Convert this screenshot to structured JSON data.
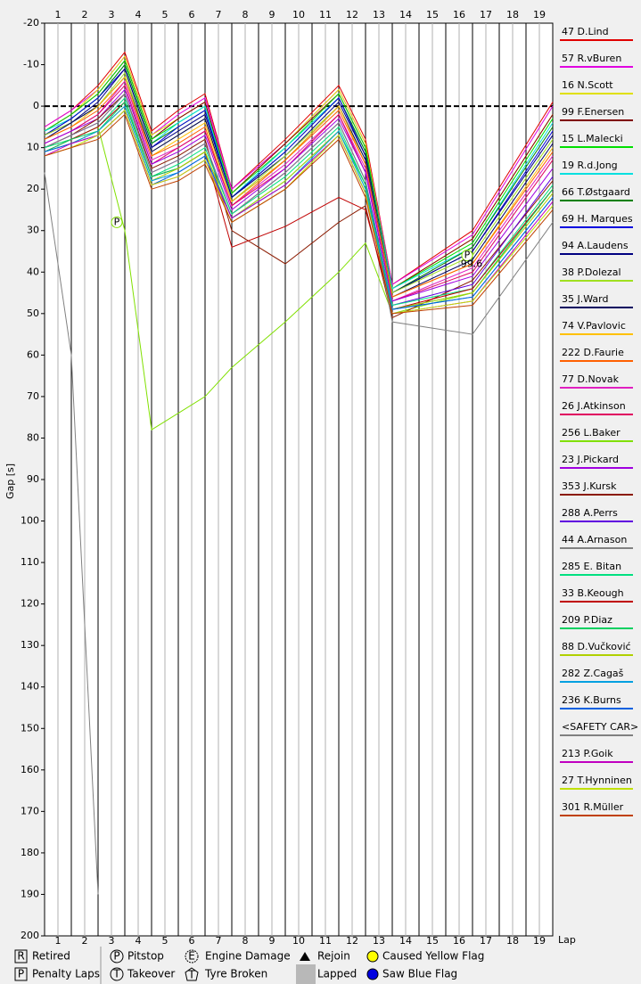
{
  "chart_data": {
    "type": "line",
    "y_label": "Gap [s]",
    "x_label": "Lap",
    "x": [
      0,
      1,
      2,
      3,
      4,
      5,
      6,
      7,
      9,
      11,
      12,
      13,
      16,
      19
    ],
    "xlim": [
      0,
      19
    ],
    "xticks": [
      {
        "value": 0.5,
        "label": "1"
      },
      {
        "value": 1.5,
        "label": "2"
      },
      {
        "value": 2.5,
        "label": "3"
      },
      {
        "value": 3.5,
        "label": "4"
      },
      {
        "value": 4.5,
        "label": "5"
      },
      {
        "value": 5.5,
        "label": "6"
      },
      {
        "value": 6.5,
        "label": "7"
      },
      {
        "value": 7.5,
        "label": "8"
      },
      {
        "value": 8.5,
        "label": "9"
      },
      {
        "value": 9.5,
        "label": "10"
      },
      {
        "value": 10.5,
        "label": "11"
      },
      {
        "value": 11.5,
        "label": "12"
      },
      {
        "value": 12.5,
        "label": "13"
      },
      {
        "value": 13.5,
        "label": "14"
      },
      {
        "value": 14.5,
        "label": "15"
      },
      {
        "value": 15.5,
        "label": "16"
      },
      {
        "value": 16.5,
        "label": "17"
      },
      {
        "value": 17.5,
        "label": "18"
      },
      {
        "value": 18.5,
        "label": "19"
      }
    ],
    "ylim": [
      -20,
      200
    ],
    "yticks": [
      -20,
      -10,
      0,
      10,
      20,
      30,
      40,
      50,
      60,
      70,
      80,
      90,
      100,
      110,
      120,
      130,
      140,
      150,
      160,
      170,
      180,
      190,
      200
    ],
    "inverted_y": true,
    "zero_line": true,
    "series": [
      {
        "name": "47 D.Lind",
        "color": "#e00000",
        "values": [
          5,
          1,
          -5,
          -13,
          6,
          1,
          -3,
          20,
          8,
          -5,
          8,
          43,
          30,
          -1
        ]
      },
      {
        "name": "57 R.vBuren",
        "color": "#e000e0",
        "values": [
          5,
          1,
          -4,
          -12,
          7,
          2,
          -2,
          20,
          9,
          -4,
          9,
          43,
          31,
          0
        ]
      },
      {
        "name": "16 N.Scott",
        "color": "#e0e000",
        "values": [
          6,
          2,
          -4,
          -12,
          7,
          3,
          -1,
          21,
          9,
          -4,
          9,
          44,
          32,
          2
        ]
      },
      {
        "name": "99 F.Enersen",
        "color": "#800000",
        "values": [
          6,
          2,
          -3,
          -11,
          8,
          3,
          -1,
          21,
          9,
          -3,
          10,
          44,
          32,
          2
        ]
      },
      {
        "name": "15 L.Malecki",
        "color": "#00e000",
        "values": [
          6,
          2,
          -3,
          -11,
          8,
          4,
          0,
          21,
          10,
          -3,
          10,
          44,
          33,
          3
        ]
      },
      {
        "name": "19 R.d.Jong",
        "color": "#00e0e0",
        "values": [
          6,
          3,
          -2,
          -10,
          9,
          4,
          0,
          22,
          10,
          -2,
          11,
          44,
          34,
          4
        ]
      },
      {
        "name": "66 T.Østgaard",
        "color": "#008000",
        "values": [
          7,
          3,
          -2,
          -10,
          9,
          5,
          1,
          22,
          11,
          -2,
          11,
          45,
          34,
          5
        ]
      },
      {
        "name": "69 H. Marques",
        "color": "#0000e0",
        "values": [
          7,
          3,
          -2,
          -9,
          10,
          5,
          1,
          22,
          11,
          -2,
          12,
          45,
          35,
          6
        ]
      },
      {
        "name": "94 A.Laudens",
        "color": "#000080",
        "values": [
          7,
          4,
          -1,
          -9,
          10,
          6,
          2,
          22,
          12,
          -1,
          12,
          45,
          35,
          7
        ]
      },
      {
        "name": "38 P.Dolezal",
        "color": "#a0e020",
        "values": [
          7,
          4,
          0,
          -8,
          11,
          7,
          3,
          23,
          12,
          0,
          13,
          45,
          36,
          8
        ]
      },
      {
        "name": "35 J.Ward",
        "color": "#000060",
        "values": [
          8,
          4,
          0,
          -7,
          11,
          7,
          3,
          23,
          13,
          0,
          13,
          46,
          37,
          9
        ]
      },
      {
        "name": "74 V.Pavlovic",
        "color": "#ffc000",
        "values": [
          8,
          5,
          0,
          -7,
          12,
          8,
          4,
          23,
          13,
          0,
          14,
          46,
          38,
          10
        ]
      },
      {
        "name": "222 D.Faurie",
        "color": "#ff6000",
        "values": [
          8,
          5,
          1,
          -6,
          12,
          9,
          5,
          24,
          13,
          1,
          14,
          46,
          38,
          11
        ]
      },
      {
        "name": "77 D.Novak",
        "color": "#e020c0",
        "values": [
          9,
          6,
          2,
          -6,
          13,
          10,
          6,
          24,
          14,
          2,
          15,
          47,
          39,
          12
        ]
      },
      {
        "name": "26 J.Atkinson",
        "color": "#e00060",
        "values": [
          9,
          6,
          2,
          -5,
          14,
          10,
          6,
          24,
          15,
          2,
          16,
          47,
          40,
          13
        ]
      },
      {
        "name": "256 L.Baker",
        "color": "#80e000",
        "values": [
          10,
          8,
          5,
          30,
          78,
          74,
          70,
          63,
          52,
          40,
          33,
          50,
          45,
          20
        ]
      },
      {
        "name": "23 J.Pickard",
        "color": "#a000e0",
        "values": [
          9,
          6,
          3,
          -4,
          14,
          11,
          7,
          25,
          15,
          3,
          16,
          47,
          41,
          15
        ]
      },
      {
        "name": "353 J.Kursk",
        "color": "#8b1a00",
        "values": [
          10,
          7,
          3,
          -3,
          15,
          12,
          8,
          30,
          38,
          28,
          24,
          51,
          42,
          18
        ]
      },
      {
        "name": "288 A.Perrs",
        "color": "#6000e0",
        "values": [
          10,
          7,
          4,
          -3,
          16,
          13,
          9,
          26,
          16,
          4,
          18,
          48,
          43,
          17
        ]
      },
      {
        "name": "44 A.Arnason",
        "color": "#808080",
        "values": [
          10,
          7,
          4,
          -3,
          16,
          13,
          9,
          26,
          16,
          4,
          18,
          52,
          55,
          28
        ]
      },
      {
        "name": "285 E. Bitan",
        "color": "#00e080",
        "values": [
          10,
          8,
          5,
          -2,
          17,
          14,
          10,
          26,
          17,
          5,
          19,
          48,
          44,
          19
        ]
      },
      {
        "name": "33 B.Keough",
        "color": "#c00000",
        "values": [
          11,
          8,
          5,
          -1,
          17,
          15,
          11,
          34,
          29,
          22,
          25,
          49,
          44,
          20
        ]
      },
      {
        "name": "209 P.Diaz",
        "color": "#00d060",
        "values": [
          11,
          8,
          6,
          -1,
          17,
          15,
          11,
          27,
          18,
          6,
          19,
          49,
          45,
          20
        ]
      },
      {
        "name": "88 D.Vučković",
        "color": "#b0d000",
        "values": [
          11,
          9,
          6,
          0,
          18,
          15,
          11,
          27,
          18,
          6,
          20,
          49,
          45,
          21
        ]
      },
      {
        "name": "282 Z.Cagaš",
        "color": "#00a0e0",
        "values": [
          11,
          9,
          6,
          0,
          18,
          16,
          12,
          27,
          19,
          6,
          20,
          49,
          46,
          22
        ]
      },
      {
        "name": "236 K.Burns",
        "color": "#0060e0",
        "values": [
          11,
          9,
          7,
          1,
          19,
          16,
          12,
          27,
          19,
          7,
          21,
          49,
          46,
          22
        ]
      },
      {
        "name": "<SAFETY CAR>",
        "color": "#808080",
        "values": [
          16,
          60,
          190,
          null,
          null,
          null,
          null,
          null,
          null,
          null,
          null,
          null,
          null,
          null
        ]
      },
      {
        "name": "213 P.Goik",
        "color": "#c000c0",
        "values": [
          12,
          9,
          7,
          1,
          19,
          17,
          13,
          27,
          19,
          7,
          21,
          50,
          47,
          23
        ]
      },
      {
        "name": "27 T.Hynninen",
        "color": "#c0e000",
        "values": [
          12,
          10,
          7,
          1,
          19,
          17,
          13,
          28,
          20,
          7,
          21,
          50,
          47,
          24
        ]
      },
      {
        "name": "301 R.Müller",
        "color": "#c04000",
        "values": [
          12,
          10,
          8,
          2,
          20,
          18,
          14,
          28,
          20,
          8,
          22,
          50,
          48,
          25
        ]
      }
    ],
    "annotations": [
      {
        "x": 2.7,
        "y": 28,
        "symbol": "P"
      },
      {
        "x": 15.8,
        "y": 36,
        "symbol": "P",
        "label": "99.6"
      }
    ],
    "key": [
      {
        "symbol": "R",
        "label": "Retired"
      },
      {
        "symbol": "P",
        "label": "Penalty Laps"
      },
      {
        "symbol": "P",
        "label": "Pitstop"
      },
      {
        "symbol": "T",
        "label": "Takeover"
      },
      {
        "symbol": "E",
        "label": "Engine Damage"
      },
      {
        "symbol": "T",
        "label": "Tyre Broken"
      },
      {
        "label": "Rejoin"
      },
      {
        "label": "Lapped"
      },
      {
        "label": "Caused Yellow Flag"
      },
      {
        "label": "Saw Blue Flag"
      }
    ]
  }
}
